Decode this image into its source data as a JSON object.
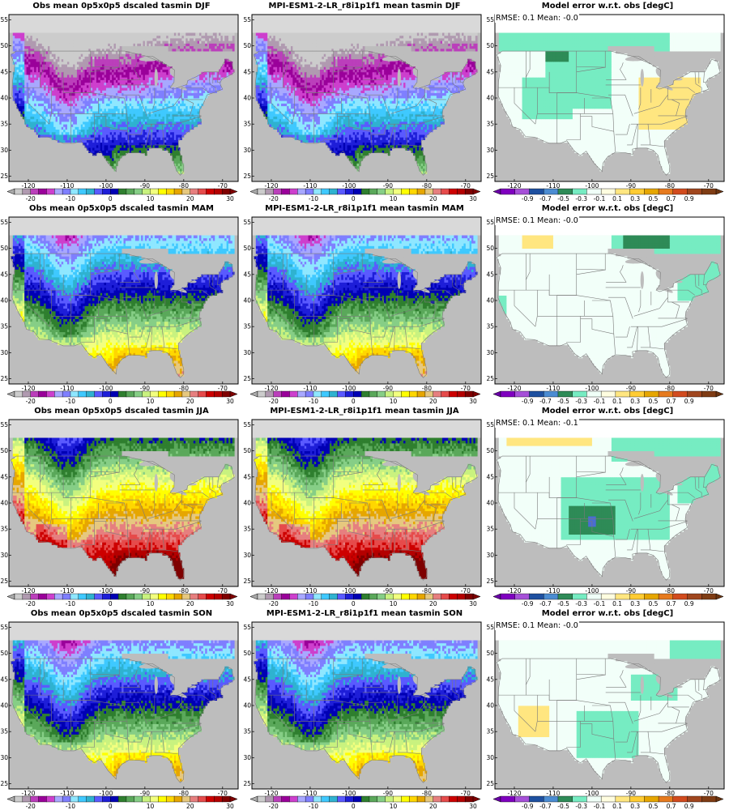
{
  "figure": {
    "rows": [
      {
        "season": "DJF",
        "obs": {
          "title": "Obs mean 0p5x0p5 dscaled tasmin DJF"
        },
        "model": {
          "title": "MPI-ESM1-2-LR_r8i1p1f1 mean tasmin DJF"
        },
        "error": {
          "title": "Model error w.r.t. obs [degC]",
          "stats": "RMSE: 0.1   Mean: -0.0"
        }
      },
      {
        "season": "MAM",
        "obs": {
          "title": "Obs mean 0p5x0p5 dscaled tasmin MAM"
        },
        "model": {
          "title": "MPI-ESM1-2-LR_r8i1p1f1 mean tasmin MAM"
        },
        "error": {
          "title": "Model error w.r.t. obs [degC]",
          "stats": "RMSE: 0.1   Mean: -0.0"
        }
      },
      {
        "season": "JJA",
        "obs": {
          "title": "Obs mean 0p5x0p5 dscaled tasmin JJA"
        },
        "model": {
          "title": "MPI-ESM1-2-LR_r8i1p1f1 mean tasmin JJA"
        },
        "error": {
          "title": "Model error w.r.t. obs [degC]",
          "stats": "RMSE: 0.1   Mean: -0.1"
        }
      },
      {
        "season": "SON",
        "obs": {
          "title": "Obs mean 0p5x0p5 dscaled tasmin SON"
        },
        "model": {
          "title": "MPI-ESM1-2-LR_r8i1p1f1 mean tasmin SON"
        },
        "error": {
          "title": "Model error w.r.t. obs [degC]",
          "stats": "RMSE: 0.1   Mean: -0.0"
        }
      }
    ],
    "map_axes": {
      "lon_range": [
        -125,
        -66
      ],
      "lat_range": [
        24,
        56
      ],
      "lon_ticks": [
        -120,
        -110,
        -100,
        -90,
        -80,
        -70
      ],
      "lat_ticks": [
        25,
        30,
        35,
        40,
        45,
        50,
        55
      ]
    },
    "temp_colorbar": {
      "labels": [
        "-20",
        "-10",
        "0",
        "10",
        "20",
        "30"
      ],
      "colors": [
        "#cccccc",
        "#b09ab0",
        "#bb3fbb",
        "#9a009a",
        "#cd3fcd",
        "#a8a8ff",
        "#7f7fff",
        "#8fe7ff",
        "#3fc9ff",
        "#2fb2d0",
        "#5a5aff",
        "#1e1ed8",
        "#0000b4",
        "#2f7f2f",
        "#5aa85a",
        "#86ce86",
        "#c9f27f",
        "#f2ff7f",
        "#ffff00",
        "#ffd700",
        "#e6a600",
        "#e6c87f",
        "#e67f7f",
        "#e64b4b",
        "#cd0000",
        "#b40000",
        "#7f0000"
      ],
      "arrow_low": "#aaaaaa",
      "arrow_high": "#7f0000"
    },
    "err_colorbar": {
      "labels": [
        "-0.9",
        "-0.7",
        "-0.5",
        "-0.3",
        "-0.1",
        "0.1",
        "0.3",
        "0.5",
        "0.7",
        "0.9"
      ],
      "colors": [
        "#7f00bf",
        "#a650d8",
        "#1e50a0",
        "#4b8cd2",
        "#2e8b57",
        "#76ecc2",
        "#f0fff8",
        "#fffde0",
        "#ffe680",
        "#ffcc33",
        "#e6a600",
        "#e67a1e",
        "#d24b1e",
        "#a0461e",
        "#7f3c14"
      ],
      "arrow_low": "#6a00a8",
      "arrow_high": "#6b3410"
    },
    "colors": {
      "ocean": "#bdbdbd",
      "border": "#7a7a7a",
      "frame": "#000000"
    }
  }
}
